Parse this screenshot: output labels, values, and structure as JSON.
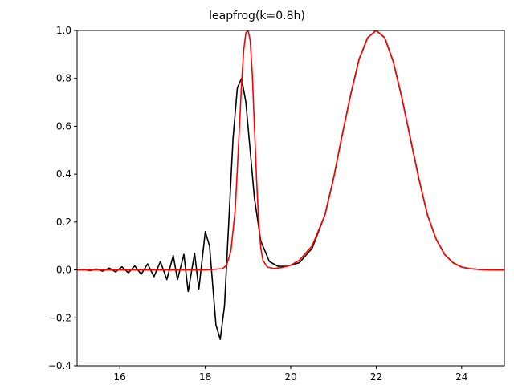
{
  "chart_data": {
    "type": "line",
    "title": "leapfrog(k=0.8h)",
    "xlabel": "",
    "ylabel": "",
    "xlim": [
      15,
      25
    ],
    "ylim": [
      -0.4,
      1.0
    ],
    "x_ticks": [
      16,
      18,
      20,
      22,
      24
    ],
    "y_ticks": [
      -0.4,
      -0.2,
      0.0,
      0.2,
      0.4,
      0.6,
      0.8,
      1.0
    ],
    "x_tick_labels": [
      "16",
      "18",
      "20",
      "22",
      "24"
    ],
    "y_tick_labels": [
      "−0.4",
      "−0.2",
      "0.0",
      "0.2",
      "0.4",
      "0.6",
      "0.8",
      "1.0"
    ],
    "grid": false,
    "series": [
      {
        "color": "#000000",
        "x": [
          15.0,
          15.15,
          15.3,
          15.45,
          15.6,
          15.75,
          15.9,
          16.05,
          16.2,
          16.35,
          16.5,
          16.65,
          16.8,
          16.95,
          17.1,
          17.25,
          17.35,
          17.5,
          17.6,
          17.75,
          17.85,
          18.0,
          18.1,
          18.25,
          18.35,
          18.45,
          18.55,
          18.65,
          18.75,
          18.85,
          18.95,
          19.05,
          19.15,
          19.3,
          19.5,
          19.7,
          19.9,
          20.2,
          20.5,
          20.8,
          21.0,
          21.2,
          21.4,
          21.6,
          21.8,
          22.0,
          22.2,
          22.4,
          22.6,
          22.8,
          23.0,
          23.2,
          23.4,
          23.6,
          23.8,
          24.0,
          24.2,
          24.5,
          24.8,
          25.0
        ],
        "y": [
          0.0,
          0.003,
          -0.003,
          0.004,
          -0.005,
          0.008,
          -0.008,
          0.013,
          -0.012,
          0.017,
          -0.018,
          0.025,
          -0.028,
          0.035,
          -0.04,
          0.06,
          -0.04,
          0.065,
          -0.09,
          0.07,
          -0.08,
          0.16,
          0.1,
          -0.23,
          -0.29,
          -0.15,
          0.2,
          0.55,
          0.76,
          0.8,
          0.7,
          0.5,
          0.3,
          0.12,
          0.035,
          0.015,
          0.015,
          0.03,
          0.09,
          0.23,
          0.38,
          0.56,
          0.73,
          0.88,
          0.97,
          1.0,
          0.97,
          0.87,
          0.72,
          0.55,
          0.38,
          0.23,
          0.13,
          0.065,
          0.03,
          0.012,
          0.005,
          0.001,
          0.0,
          0.0
        ]
      },
      {
        "color": "#ff0000",
        "x": [
          15.0,
          16.0,
          17.0,
          18.0,
          18.4,
          18.5,
          18.6,
          18.7,
          18.75,
          18.8,
          18.85,
          18.9,
          18.95,
          19.0,
          19.05,
          19.1,
          19.15,
          19.2,
          19.25,
          19.3,
          19.35,
          19.45,
          19.6,
          19.8,
          20.0,
          20.2,
          20.5,
          20.8,
          21.0,
          21.2,
          21.4,
          21.6,
          21.8,
          22.0,
          22.2,
          22.4,
          22.6,
          22.8,
          23.0,
          23.2,
          23.4,
          23.6,
          23.8,
          24.0,
          24.2,
          24.5,
          24.8,
          25.0
        ],
        "y": [
          0.0,
          0.0,
          0.0,
          0.0,
          0.005,
          0.02,
          0.08,
          0.25,
          0.42,
          0.6,
          0.78,
          0.92,
          0.99,
          1.0,
          0.96,
          0.82,
          0.6,
          0.38,
          0.2,
          0.09,
          0.04,
          0.012,
          0.006,
          0.01,
          0.02,
          0.04,
          0.1,
          0.23,
          0.38,
          0.56,
          0.73,
          0.88,
          0.97,
          1.0,
          0.97,
          0.87,
          0.72,
          0.55,
          0.38,
          0.23,
          0.13,
          0.065,
          0.03,
          0.012,
          0.005,
          0.001,
          0.0,
          0.0
        ]
      }
    ]
  }
}
